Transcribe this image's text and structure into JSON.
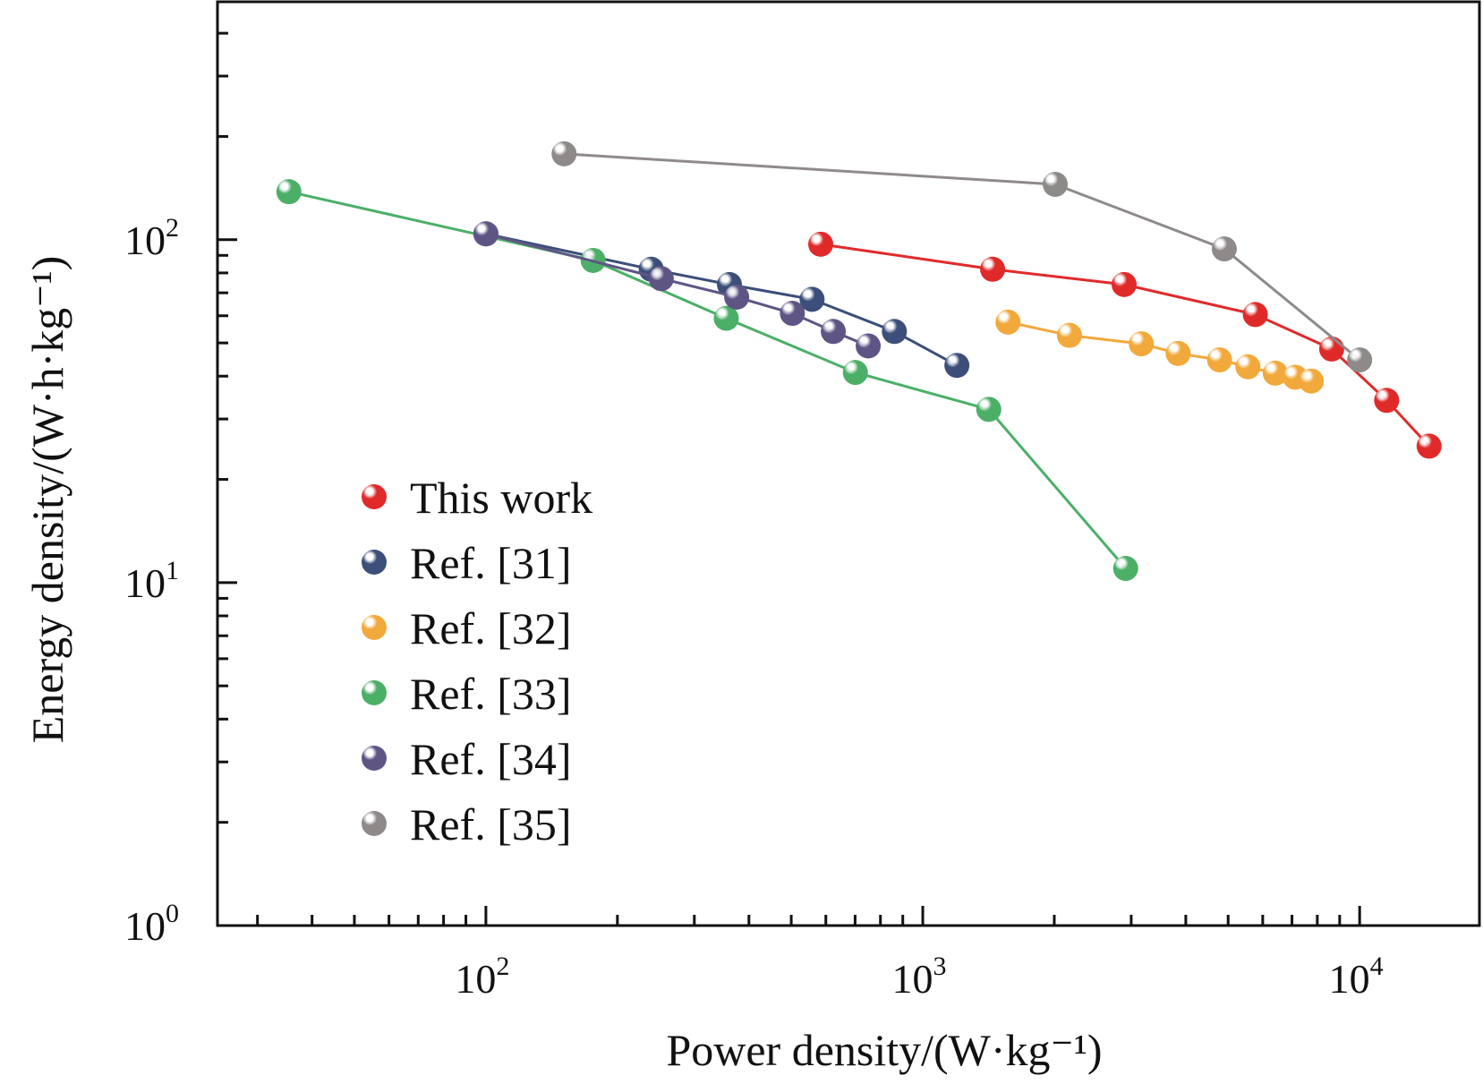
{
  "chart_data": {
    "type": "line",
    "title": "",
    "xlabel": "Power density/(W·kg⁻¹)",
    "ylabel": "Energy density/(W·h·kg⁻¹)",
    "xscale": "log",
    "yscale": "log",
    "xlim": [
      24.3,
      18800
    ],
    "ylim": [
      1,
      494
    ],
    "x_ticks": [
      {
        "value": 100,
        "base": "10",
        "exp": "2"
      },
      {
        "value": 1000,
        "base": "10",
        "exp": "3"
      },
      {
        "value": 10000,
        "base": "10",
        "exp": "4"
      }
    ],
    "y_ticks": [
      {
        "value": 1,
        "base": "10",
        "exp": "0"
      },
      {
        "value": 10,
        "base": "10",
        "exp": "1"
      },
      {
        "value": 100,
        "base": "10",
        "exp": "2"
      }
    ],
    "grid": false,
    "legend_position": "lower-left",
    "series": [
      {
        "name": "This work",
        "color": "#e02a2a",
        "x": [
          584,
          1445,
          2890,
          5770,
          8630,
          11530,
          14420
        ],
        "y": [
          97,
          82,
          74,
          60.5,
          48,
          34,
          25
        ]
      },
      {
        "name": "Ref. [31]",
        "color": "#3b4f7a",
        "x": [
          100,
          239,
          361,
          558,
          861,
          1197
        ],
        "y": [
          104,
          82,
          74,
          67,
          54,
          43
        ]
      },
      {
        "name": "Ref. [32]",
        "color": "#f2a93b",
        "x": [
          1567,
          2166,
          3164,
          3841,
          4780,
          5550,
          6410,
          7120,
          7750
        ],
        "y": [
          57.5,
          52.6,
          49.7,
          46.6,
          44.6,
          42.6,
          40.8,
          39.7,
          38.7
        ]
      },
      {
        "name": "Ref. [33]",
        "color": "#4caf68",
        "x": [
          35.4,
          176,
          355,
          701,
          1416,
          2913
        ],
        "y": [
          138,
          87,
          59,
          41,
          32,
          11
        ]
      },
      {
        "name": "Ref. [34]",
        "color": "#5f5585",
        "x": [
          100,
          252,
          375,
          503,
          624,
          750
        ],
        "y": [
          104,
          77,
          68,
          61,
          54,
          49
        ]
      },
      {
        "name": "Ref. [35]",
        "color": "#8f8a8a",
        "x": [
          151,
          2010,
          4900,
          10000
        ],
        "y": [
          178,
          145,
          94,
          44.6
        ]
      }
    ]
  }
}
